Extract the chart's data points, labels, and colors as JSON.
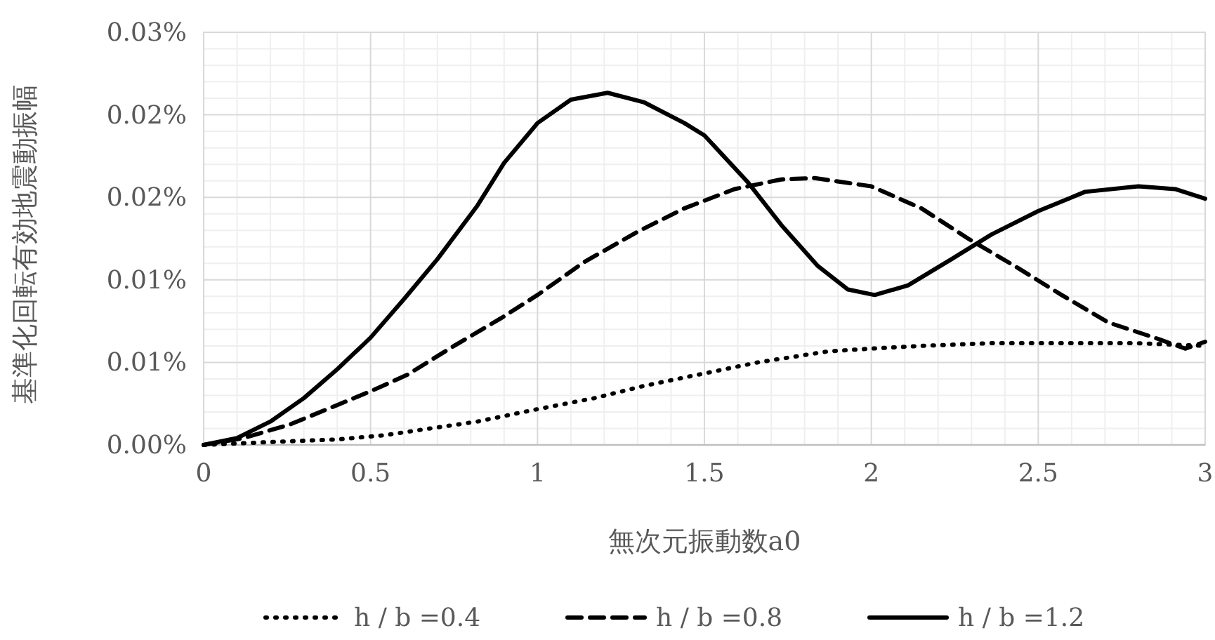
{
  "chart_data": {
    "type": "line",
    "xlabel": "無次元振動数a0",
    "ylabel": "基準化回転有効地震動振幅",
    "xlim": [
      0,
      3
    ],
    "xticks": [
      0,
      0.5,
      1,
      1.5,
      2,
      2.5,
      3
    ],
    "ylim": [
      0,
      0.03
    ],
    "yticks": [
      {
        "value": 0,
        "label": "0.00%"
      },
      {
        "value": 0.006,
        "label": "0.01%"
      },
      {
        "value": 0.012,
        "label": "0.01%"
      },
      {
        "value": 0.018,
        "label": "0.02%"
      },
      {
        "value": 0.024,
        "label": "0.02%"
      },
      {
        "value": 0.03,
        "label": "0.03%"
      }
    ],
    "grid": true,
    "legend": "bottom",
    "marker": "none",
    "series": [
      {
        "name": "h / b =0.4",
        "color": "#000000",
        "line_style": "dotted",
        "x": [
          0,
          0.19,
          0.4,
          0.54,
          0.68,
          0.82,
          1.0,
          1.17,
          1.32,
          1.48,
          1.66,
          1.87,
          2.0,
          2.15,
          2.36,
          2.57,
          2.79,
          3.0
        ],
        "values": [
          0,
          0.0002,
          0.0004,
          0.0007,
          0.0012,
          0.0017,
          0.0026,
          0.0034,
          0.0043,
          0.0051,
          0.006,
          0.0068,
          0.007,
          0.0072,
          0.0074,
          0.0074,
          0.0074,
          0.0072
        ]
      },
      {
        "name": "h / b =0.8",
        "color": "#000000",
        "line_style": "dashed",
        "x": [
          0,
          0.12,
          0.26,
          0.4,
          0.5,
          0.61,
          0.75,
          0.89,
          1.0,
          1.14,
          1.3,
          1.44,
          1.59,
          1.73,
          1.83,
          2.0,
          2.15,
          2.29,
          2.43,
          2.57,
          2.71,
          2.86,
          2.94,
          3.0
        ],
        "values": [
          0,
          0.0005,
          0.0015,
          0.0029,
          0.0039,
          0.0051,
          0.0072,
          0.0092,
          0.0109,
          0.0133,
          0.0155,
          0.0172,
          0.0186,
          0.0193,
          0.0194,
          0.0188,
          0.0172,
          0.015,
          0.013,
          0.0109,
          0.0089,
          0.0077,
          0.007,
          0.0075
        ]
      },
      {
        "name": "h / b =1.2",
        "color": "#000000",
        "line_style": "solid",
        "x": [
          0,
          0.1,
          0.2,
          0.3,
          0.4,
          0.5,
          0.6,
          0.7,
          0.82,
          0.9,
          1.0,
          1.1,
          1.21,
          1.32,
          1.44,
          1.5,
          1.63,
          1.73,
          1.84,
          1.93,
          2.01,
          2.11,
          2.24,
          2.36,
          2.5,
          2.64,
          2.8,
          2.91,
          3.0
        ],
        "values": [
          0,
          0.0005,
          0.0017,
          0.0034,
          0.0055,
          0.0078,
          0.0106,
          0.0135,
          0.0174,
          0.0205,
          0.0234,
          0.0251,
          0.0256,
          0.0249,
          0.0234,
          0.0225,
          0.0191,
          0.016,
          0.013,
          0.0113,
          0.0109,
          0.0116,
          0.0135,
          0.0153,
          0.017,
          0.0184,
          0.0188,
          0.0186,
          0.0179
        ]
      }
    ]
  }
}
